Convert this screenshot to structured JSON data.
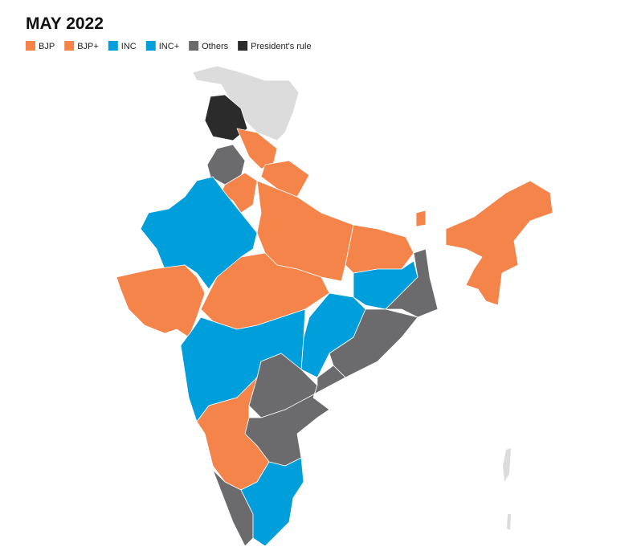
{
  "title": "MAY 2022",
  "legend": [
    {
      "label": "BJP",
      "color": "#f5844a"
    },
    {
      "label": "BJP+",
      "color": "#f5844a"
    },
    {
      "label": "INC",
      "color": "#009fdc"
    },
    {
      "label": "INC+",
      "color": "#009fdc"
    },
    {
      "label": "Others",
      "color": "#6b6b6d"
    },
    {
      "label": "President's rule",
      "color": "#2b2b2b"
    }
  ]
}
